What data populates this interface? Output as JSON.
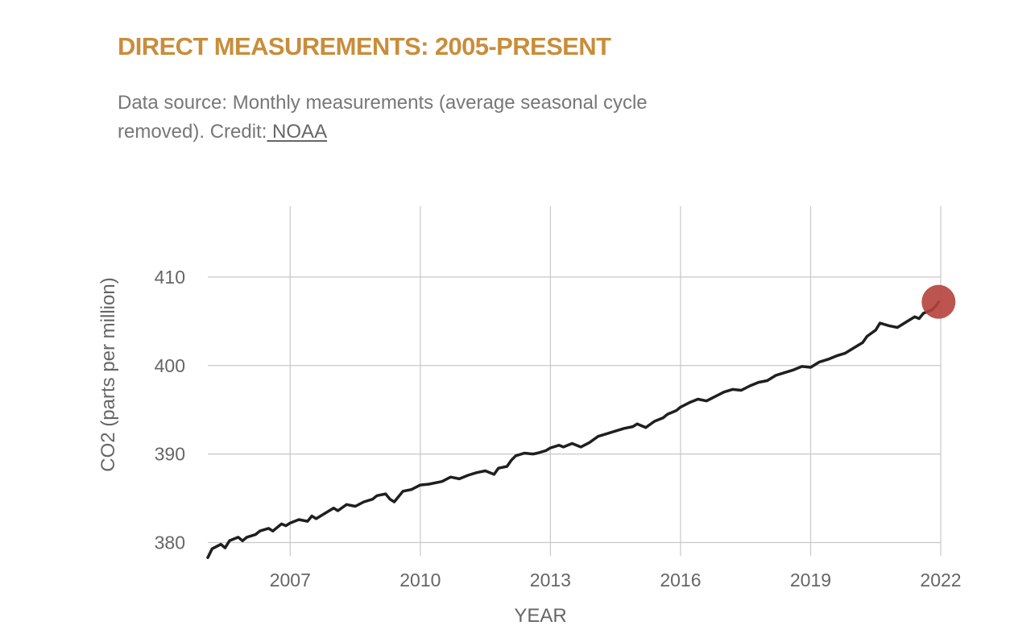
{
  "header": {
    "title": "DIRECT MEASUREMENTS: 2005-PRESENT",
    "subtitle_line1": "Data source: Monthly measurements (average seasonal cycle",
    "subtitle_line2": "removed). Credit:",
    "credit_link": " NOAA"
  },
  "colors": {
    "title": "#c98d3a",
    "line": "#1f1f1f",
    "marker": "#b5413c",
    "grid": "#c8c8c8",
    "text": "#666666"
  },
  "chart_data": {
    "type": "line",
    "xlabel": "YEAR",
    "ylabel": "CO2 (parts per million)",
    "xlim": [
      2005.1,
      2022.0
    ],
    "ylim": [
      378.5,
      418
    ],
    "x_ticks": [
      2007,
      2010,
      2013,
      2016,
      2019,
      2022
    ],
    "y_ticks": [
      380,
      390,
      400,
      410
    ],
    "grid": true,
    "highlight_last_point": true,
    "series": [
      {
        "points": [
          [
            2005.1,
            378.3
          ],
          [
            2005.2,
            379.3
          ],
          [
            2005.4,
            379.8
          ],
          [
            2005.5,
            379.4
          ],
          [
            2005.6,
            380.2
          ],
          [
            2005.8,
            380.6
          ],
          [
            2005.9,
            380.2
          ],
          [
            2006.0,
            380.6
          ],
          [
            2006.2,
            380.9
          ],
          [
            2006.3,
            381.3
          ],
          [
            2006.5,
            381.6
          ],
          [
            2006.6,
            381.3
          ],
          [
            2006.8,
            382.1
          ],
          [
            2006.9,
            381.9
          ],
          [
            2007.0,
            382.2
          ],
          [
            2007.2,
            382.6
          ],
          [
            2007.4,
            382.4
          ],
          [
            2007.5,
            383.0
          ],
          [
            2007.6,
            382.7
          ],
          [
            2007.8,
            383.3
          ],
          [
            2008.0,
            383.9
          ],
          [
            2008.1,
            383.6
          ],
          [
            2008.3,
            384.3
          ],
          [
            2008.5,
            384.1
          ],
          [
            2008.7,
            384.6
          ],
          [
            2008.9,
            384.9
          ],
          [
            2009.0,
            385.3
          ],
          [
            2009.2,
            385.5
          ],
          [
            2009.3,
            384.9
          ],
          [
            2009.4,
            384.6
          ],
          [
            2009.6,
            385.8
          ],
          [
            2009.8,
            386.0
          ],
          [
            2010.0,
            386.5
          ],
          [
            2010.2,
            386.6
          ],
          [
            2010.5,
            386.9
          ],
          [
            2010.7,
            387.4
          ],
          [
            2010.9,
            387.2
          ],
          [
            2011.1,
            387.6
          ],
          [
            2011.3,
            387.9
          ],
          [
            2011.5,
            388.1
          ],
          [
            2011.7,
            387.7
          ],
          [
            2011.8,
            388.4
          ],
          [
            2012.0,
            388.6
          ],
          [
            2012.1,
            389.3
          ],
          [
            2012.2,
            389.8
          ],
          [
            2012.4,
            390.1
          ],
          [
            2012.6,
            390.0
          ],
          [
            2012.7,
            390.1
          ],
          [
            2012.9,
            390.4
          ],
          [
            2013.0,
            390.7
          ],
          [
            2013.2,
            391.0
          ],
          [
            2013.3,
            390.8
          ],
          [
            2013.5,
            391.2
          ],
          [
            2013.7,
            390.8
          ],
          [
            2013.9,
            391.3
          ],
          [
            2014.1,
            392.0
          ],
          [
            2014.3,
            392.3
          ],
          [
            2014.5,
            392.6
          ],
          [
            2014.7,
            392.9
          ],
          [
            2014.9,
            393.1
          ],
          [
            2015.0,
            393.4
          ],
          [
            2015.2,
            393.0
          ],
          [
            2015.4,
            393.7
          ],
          [
            2015.6,
            394.1
          ],
          [
            2015.7,
            394.5
          ],
          [
            2015.9,
            394.9
          ],
          [
            2016.0,
            395.3
          ],
          [
            2016.2,
            395.8
          ],
          [
            2016.4,
            396.2
          ],
          [
            2016.6,
            396.0
          ],
          [
            2016.8,
            396.5
          ],
          [
            2017.0,
            397.0
          ],
          [
            2017.2,
            397.3
          ],
          [
            2017.4,
            397.2
          ],
          [
            2017.6,
            397.7
          ],
          [
            2017.8,
            398.1
          ],
          [
            2018.0,
            398.3
          ],
          [
            2018.2,
            398.9
          ],
          [
            2018.4,
            399.2
          ],
          [
            2018.6,
            399.5
          ],
          [
            2018.8,
            399.9
          ],
          [
            2019.0,
            399.8
          ],
          [
            2019.2,
            400.4
          ],
          [
            2019.4,
            400.7
          ],
          [
            2019.6,
            401.1
          ],
          [
            2019.8,
            401.4
          ],
          [
            2020.0,
            402.0
          ],
          [
            2020.2,
            402.6
          ],
          [
            2020.3,
            403.3
          ],
          [
            2020.5,
            404.0
          ],
          [
            2020.6,
            404.8
          ],
          [
            2020.8,
            404.5
          ],
          [
            2021.0,
            404.3
          ],
          [
            2021.2,
            404.9
          ],
          [
            2021.4,
            405.5
          ],
          [
            2021.5,
            405.3
          ],
          [
            2021.6,
            405.9
          ],
          [
            2021.8,
            406.3
          ],
          [
            2021.9,
            406.8
          ],
          [
            2021.95,
            407.2
          ]
        ]
      }
    ]
  }
}
